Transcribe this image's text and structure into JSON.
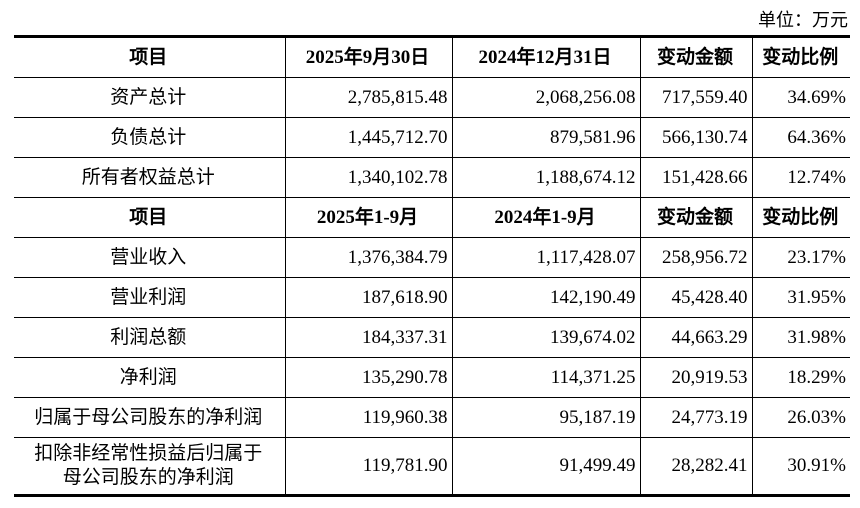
{
  "unit": "单位：万元",
  "balance": {
    "header": [
      "项目",
      "2025年9月30日",
      "2024年12月31日",
      "变动金额",
      "变动比例"
    ],
    "rows": [
      [
        "资产总计",
        "2,785,815.48",
        "2,068,256.08",
        "717,559.40",
        "34.69%"
      ],
      [
        "负债总计",
        "1,445,712.70",
        "879,581.96",
        "566,130.74",
        "64.36%"
      ],
      [
        "所有者权益总计",
        "1,340,102.78",
        "1,188,674.12",
        "151,428.66",
        "12.74%"
      ]
    ]
  },
  "income": {
    "header": [
      "项目",
      "2025年1-9月",
      "2024年1-9月",
      "变动金额",
      "变动比例"
    ],
    "rows": [
      [
        "营业收入",
        "1,376,384.79",
        "1,117,428.07",
        "258,956.72",
        "23.17%"
      ],
      [
        "营业利润",
        "187,618.90",
        "142,190.49",
        "45,428.40",
        "31.95%"
      ],
      [
        "利润总额",
        "184,337.31",
        "139,674.02",
        "44,663.29",
        "31.98%"
      ],
      [
        "净利润",
        "135,290.78",
        "114,371.25",
        "20,919.53",
        "18.29%"
      ],
      [
        "归属于母公司股东的净利润",
        "119,960.38",
        "95,187.19",
        "24,773.19",
        "26.03%"
      ],
      [
        "扣除非经常性损益后归属于\n母公司股东的净利润",
        "119,781.90",
        "91,499.49",
        "28,282.41",
        "30.91%"
      ]
    ]
  }
}
